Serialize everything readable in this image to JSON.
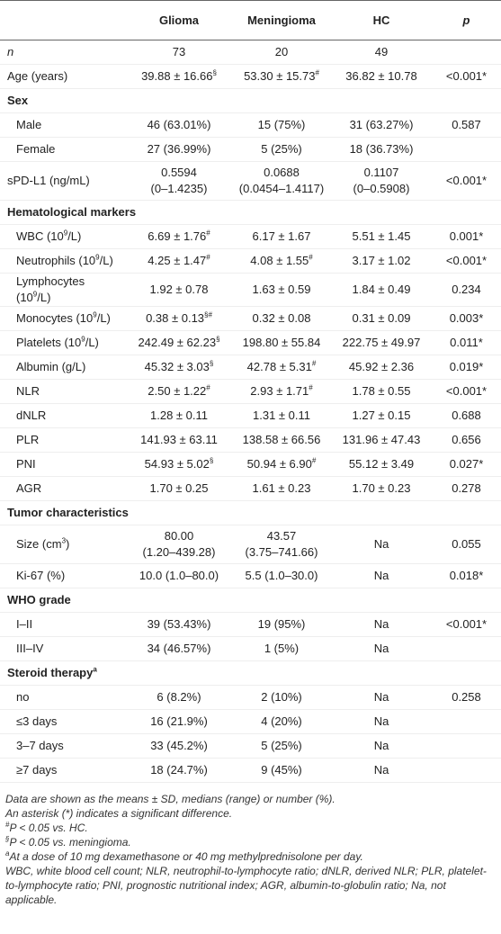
{
  "table": {
    "columns": [
      "Glioma",
      "Meningioma",
      "HC",
      "p"
    ],
    "groups": [
      {
        "rows": [
          {
            "label": "n",
            "glioma": "73",
            "meningioma": "20",
            "hc": "49"
          },
          {
            "label": "Age (years)",
            "glioma": [
              "39.88 ± 16.66",
              {
                "sup": "§"
              }
            ],
            "meningioma": [
              "53.30 ± 15.73",
              {
                "sup": "#"
              }
            ],
            "hc": "36.82 ± 10.78",
            "p": "<0.001*"
          }
        ]
      },
      {
        "title": "Sex",
        "rows": [
          {
            "label": "Male",
            "glioma": "46 (63.01%)",
            "meningioma": "15 (75%)",
            "hc": "31 (63.27%)",
            "p": "0.587"
          },
          {
            "label": "Female",
            "glioma": "27 (36.99%)",
            "meningioma": "5 (25%)",
            "hc": "18 (36.73%)"
          }
        ]
      },
      {
        "rows": [
          {
            "label": "sPD-L1 (ng/mL)",
            "glioma": "0.5594\n(0–1.4235)",
            "meningioma": "0.0688\n(0.0454–1.4117)",
            "hc": "0.1107\n(0–0.5908)",
            "p": "<0.001*"
          }
        ]
      },
      {
        "title": "Hematological markers",
        "rows": [
          {
            "label": [
              "WBC (10",
              {
                "sup": "9"
              },
              "/L)"
            ],
            "glioma": [
              "6.69 ± 1.76",
              {
                "sup": "#"
              }
            ],
            "meningioma": "6.17 ± 1.67",
            "hc": "5.51 ± 1.45",
            "p": "0.001*"
          },
          {
            "label": [
              "Neutrophils (10",
              {
                "sup": "9"
              },
              "/L)"
            ],
            "glioma": [
              "4.25 ± 1.47",
              {
                "sup": "#"
              }
            ],
            "meningioma": [
              "4.08 ± 1.55",
              {
                "sup": "#"
              }
            ],
            "hc": "3.17 ± 1.02",
            "p": "<0.001*"
          },
          {
            "label": [
              "Lymphocytes (10",
              {
                "sup": "9"
              },
              "/L)"
            ],
            "glioma": "1.92 ± 0.78",
            "meningioma": "1.63 ± 0.59",
            "hc": "1.84 ± 0.49",
            "p": "0.234"
          },
          {
            "label": [
              "Monocytes (10",
              {
                "sup": "9"
              },
              "/L)"
            ],
            "glioma": [
              "0.38 ± 0.13",
              {
                "sup": "§#"
              }
            ],
            "meningioma": "0.32 ± 0.08",
            "hc": "0.31 ± 0.09",
            "p": "0.003*"
          },
          {
            "label": [
              "Platelets (10",
              {
                "sup": "9"
              },
              "/L)"
            ],
            "glioma": [
              "242.49 ± 62.23",
              {
                "sup": "§"
              }
            ],
            "meningioma": "198.80 ± 55.84",
            "hc": "222.75 ± 49.97",
            "p": "0.011*"
          },
          {
            "label": "Albumin (g/L)",
            "glioma": [
              "45.32 ± 3.03",
              {
                "sup": "§"
              }
            ],
            "meningioma": [
              "42.78 ± 5.31",
              {
                "sup": "#"
              }
            ],
            "hc": "45.92 ± 2.36",
            "p": "0.019*"
          },
          {
            "label": "NLR",
            "glioma": [
              "2.50 ± 1.22",
              {
                "sup": "#"
              }
            ],
            "meningioma": [
              "2.93 ± 1.71",
              {
                "sup": "#"
              }
            ],
            "hc": "1.78 ± 0.55",
            "p": "<0.001*"
          },
          {
            "label": "dNLR",
            "glioma": "1.28 ± 0.11",
            "meningioma": "1.31 ± 0.11",
            "hc": "1.27 ± 0.15",
            "p": "0.688"
          },
          {
            "label": "PLR",
            "glioma": "141.93 ± 63.11",
            "meningioma": "138.58 ± 66.56",
            "hc": "131.96 ± 47.43",
            "p": "0.656"
          },
          {
            "label": "PNI",
            "glioma": [
              "54.93 ± 5.02",
              {
                "sup": "§"
              }
            ],
            "meningioma": [
              "50.94 ± 6.90",
              {
                "sup": "#"
              }
            ],
            "hc": "55.12 ± 3.49",
            "p": "0.027*"
          },
          {
            "label": "AGR",
            "glioma": "1.70 ± 0.25",
            "meningioma": "1.61 ± 0.23",
            "hc": "1.70 ± 0.23",
            "p": "0.278"
          }
        ]
      },
      {
        "title": "Tumor characteristics",
        "rows": [
          {
            "label": [
              "Size (cm",
              {
                "sup": "3"
              },
              ")"
            ],
            "glioma": "80.00\n(1.20–439.28)",
            "meningioma": "43.57\n(3.75–741.66)",
            "hc": "Na",
            "p": "0.055"
          },
          {
            "label": "Ki-67 (%)",
            "glioma": "10.0 (1.0–80.0)",
            "meningioma": "5.5 (1.0–30.0)",
            "hc": "Na",
            "p": "0.018*"
          }
        ]
      },
      {
        "title": "WHO grade",
        "rows": [
          {
            "label": "I–II",
            "glioma": "39 (53.43%)",
            "meningioma": "19 (95%)",
            "hc": "Na",
            "p": "<0.001*"
          },
          {
            "label": "III–IV",
            "glioma": "34 (46.57%)",
            "meningioma": "1 (5%)",
            "hc": "Na"
          }
        ]
      },
      {
        "title": [
          "Steroid therapy",
          {
            "sup": "a"
          }
        ],
        "rows": [
          {
            "label": "no",
            "glioma": "6 (8.2%)",
            "meningioma": "2 (10%)",
            "hc": "Na",
            "p": "0.258"
          },
          {
            "label": "≤3 days",
            "glioma": "16 (21.9%)",
            "meningioma": "4 (20%)",
            "hc": "Na"
          },
          {
            "label": "3–7 days",
            "glioma": "33 (45.2%)",
            "meningioma": "5 (25%)",
            "hc": "Na"
          },
          {
            "label": "≥7 days",
            "glioma": "18 (24.7%)",
            "meningioma": "9 (45%)",
            "hc": "Na"
          }
        ]
      }
    ],
    "footnotes": [
      "Data are shown as the means ± SD, medians (range) or number (%).",
      "An asterisk (*) indicates a significant difference.",
      [
        {
          "sup": "#"
        },
        "P < 0.05 vs. HC."
      ],
      [
        {
          "sup": "§"
        },
        "P < 0.05 vs. meningioma."
      ],
      [
        {
          "sup": "a"
        },
        "At a dose of 10 mg dexamethasone or 40 mg methylprednisolone per day."
      ],
      "WBC, white blood cell count; NLR, neutrophil-to-lymphocyte ratio; dNLR, derived NLR; PLR, platelet-to-lymphocyte ratio; PNI, prognostic nutritional index; AGR, albumin-to-globulin ratio; Na, not applicable."
    ]
  }
}
